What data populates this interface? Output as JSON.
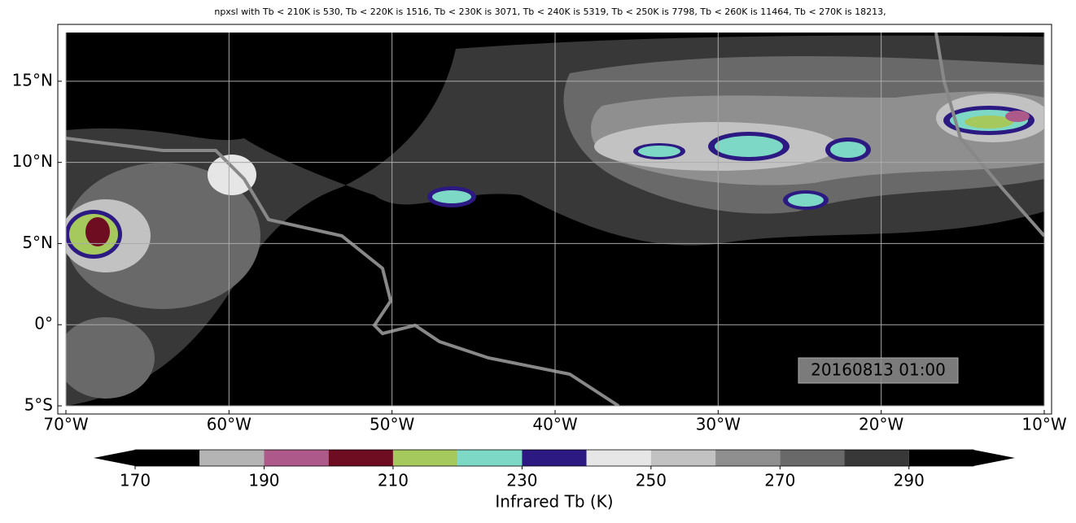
{
  "map": {
    "title": "npxsl with Tb < 210K is 530,  Tb < 220K is 1516,  Tb < 230K is 3071,  Tb < 240K is 5319,  Tb < 250K is 7798,  Tb < 260K is 11464,  Tb < 270K is 18213,",
    "lonlim": [
      -70,
      -10
    ],
    "latlim": [
      -5,
      18
    ],
    "lonticks": [
      {
        "value": -70,
        "label": "70°W"
      },
      {
        "value": -60,
        "label": "60°W"
      },
      {
        "value": -50,
        "label": "50°W"
      },
      {
        "value": -40,
        "label": "40°W"
      },
      {
        "value": -30,
        "label": "30°W"
      },
      {
        "value": -20,
        "label": "20°W"
      },
      {
        "value": -10,
        "label": "10°W"
      }
    ],
    "latticks": [
      {
        "value": -5,
        "label": "5°S"
      },
      {
        "value": 0,
        "label": "0°"
      },
      {
        "value": 5,
        "label": "5°N"
      },
      {
        "value": 10,
        "label": "10°N"
      },
      {
        "value": 15,
        "label": "15°N"
      }
    ],
    "grid": true,
    "stamp": "20160813 01:00",
    "colorbar": {
      "label": "Infrared Tb (K)",
      "levels": [
        170,
        180,
        190,
        200,
        210,
        220,
        230,
        240,
        250,
        260,
        270,
        280,
        290,
        300
      ],
      "colors": [
        "#000000",
        "#b4b4b4",
        "#ad5a8a",
        "#6e0c22",
        "#a6c95e",
        "#7dd9c6",
        "#2c1a82",
        "#e6e6e6",
        "#c2c2c2",
        "#8f8f8f",
        "#696969",
        "#383838",
        "#000000"
      ],
      "ticks": [
        170,
        190,
        210,
        230,
        250,
        270,
        290
      ],
      "extend": "both"
    }
  }
}
